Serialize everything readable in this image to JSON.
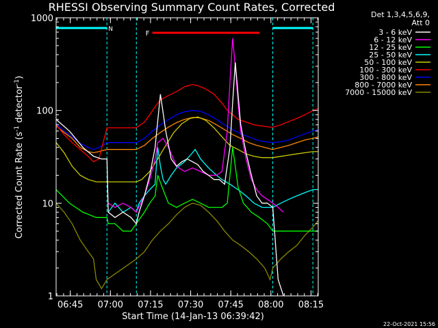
{
  "chart_data": {
    "type": "line",
    "title": "RHESSI Observing Summary Count Rates, Corrected",
    "xlabel": "Start Time (14-Jan-13 06:39:42)",
    "ylabel_main": "Corrected Count Rate (s",
    "ylabel_sup1": "-1",
    "ylabel_mid": " detector",
    "ylabel_sup2": "-1",
    "ylabel_end": ")",
    "y_scale": "log",
    "ylim": [
      1,
      1000
    ],
    "xlim_minutes": [
      0,
      98
    ],
    "x_ticks": [
      {
        "label": "06:45",
        "min": 5.3
      },
      {
        "label": "07:00",
        "min": 20.3
      },
      {
        "label": "07:15",
        "min": 35.3
      },
      {
        "label": "07:30",
        "min": 50.3
      },
      {
        "label": "07:45",
        "min": 65.3
      },
      {
        "label": "08:00",
        "min": 80.3
      },
      {
        "label": "08:15",
        "min": 95.3
      }
    ],
    "y_tick_labels": [
      {
        "label": "1",
        "value": 1
      },
      {
        "label": "10",
        "value": 10
      },
      {
        "label": "100",
        "value": 100
      },
      {
        "label": "1000",
        "value": 1000
      }
    ],
    "legend_header": [
      "Det 1,3,4,5,6,9,",
      "Att 0"
    ],
    "legend_placement": "right",
    "night_label": "N",
    "flare_label": "F",
    "night_intervals": [
      [
        0,
        19
      ],
      [
        81,
        96
      ]
    ],
    "flare_interval": [
      36,
      76
    ],
    "saa_boundaries": [
      0,
      19,
      30,
      81,
      96
    ],
    "footer_date": "22-Oct-2021 15:56",
    "series": [
      {
        "name": "3 - 6 keV",
        "color": "#ffffff",
        "x": [
          0,
          5,
          10,
          14,
          17,
          19,
          19.5,
          22,
          25,
          28,
          30,
          31,
          33,
          35,
          37,
          39,
          41,
          43,
          45,
          47,
          49,
          51,
          53,
          55,
          57,
          59,
          61,
          63,
          65,
          66,
          67,
          68,
          69,
          71,
          73,
          75,
          77,
          79,
          81,
          83,
          85
        ],
        "y": [
          80,
          60,
          40,
          32,
          30,
          30,
          8,
          7,
          8,
          7,
          6,
          8,
          12,
          20,
          40,
          150,
          60,
          30,
          25,
          28,
          30,
          28,
          26,
          22,
          20,
          18,
          18,
          16,
          40,
          120,
          330,
          150,
          70,
          35,
          20,
          12,
          10,
          10,
          9,
          1.5,
          1
        ]
      },
      {
        "name": "6 - 12 keV",
        "color": "#ff00ff",
        "x": [
          19.5,
          22,
          25,
          28,
          30,
          33,
          35,
          37,
          38,
          40,
          42,
          45,
          48,
          51,
          54,
          57,
          60,
          62,
          64,
          65,
          66,
          67,
          68,
          69,
          71,
          73,
          75,
          77,
          79,
          81,
          83,
          85
        ],
        "y": [
          10,
          9,
          10,
          9,
          8,
          12,
          18,
          30,
          45,
          50,
          40,
          25,
          22,
          24,
          22,
          20,
          20,
          22,
          60,
          200,
          600,
          300,
          120,
          60,
          30,
          18,
          14,
          12,
          11,
          10,
          9,
          8
        ]
      },
      {
        "name": "12 - 25 keV",
        "color": "#00ff00",
        "x": [
          0,
          5,
          10,
          15,
          19,
          19.5,
          22,
          25,
          28,
          30,
          33,
          35,
          37,
          38,
          40,
          42,
          45,
          48,
          51,
          54,
          57,
          60,
          62,
          64,
          65,
          66,
          67,
          68,
          70,
          73,
          76,
          79,
          81,
          84,
          87,
          90,
          93,
          96,
          98
        ],
        "y": [
          14,
          10,
          8,
          7,
          7,
          6,
          6,
          5,
          5,
          6,
          8,
          10,
          12,
          20,
          14,
          10,
          9,
          10,
          11,
          10,
          9,
          9,
          9,
          10,
          20,
          40,
          25,
          15,
          10,
          8,
          7,
          6,
          5,
          5,
          5,
          5,
          5,
          5,
          5
        ]
      },
      {
        "name": "25 - 50 keV",
        "color": "#00ffff",
        "x": [
          19.5,
          22,
          25,
          28,
          30,
          31,
          33,
          35,
          37,
          38,
          39,
          40,
          41,
          43,
          45,
          48,
          51,
          52,
          54,
          57,
          60,
          62,
          65,
          68,
          71,
          74,
          77,
          80,
          81,
          84,
          87,
          90,
          93,
          96,
          98
        ],
        "y": [
          8,
          10,
          8,
          9,
          8,
          10,
          12,
          14,
          16,
          40,
          25,
          18,
          16,
          20,
          24,
          28,
          35,
          38,
          30,
          24,
          20,
          18,
          16,
          14,
          12,
          10,
          9,
          9,
          9,
          10,
          11,
          12,
          13,
          14,
          14
        ]
      },
      {
        "name": "50 - 100 keV",
        "color": "#cccc00",
        "x": [
          0,
          3,
          6,
          9,
          12,
          15,
          18,
          19,
          30,
          32,
          35,
          38,
          41,
          44,
          47,
          50,
          53,
          56,
          59,
          62,
          65,
          68,
          71,
          74,
          77,
          80,
          81,
          84,
          87,
          90,
          93,
          96,
          98
        ],
        "y": [
          45,
          35,
          25,
          20,
          18,
          17,
          17,
          17,
          17,
          18,
          22,
          30,
          42,
          58,
          72,
          82,
          85,
          78,
          65,
          52,
          42,
          38,
          34,
          32,
          31,
          31,
          31,
          32,
          33,
          34,
          35,
          36,
          36
        ]
      },
      {
        "name": "100 - 300 keV",
        "color": "#ff0000",
        "x": [
          0,
          3,
          6,
          9,
          12,
          14,
          16,
          19,
          30,
          33,
          35,
          37,
          39,
          42,
          45,
          48,
          51,
          53,
          56,
          59,
          62,
          64,
          66,
          68,
          71,
          74,
          77,
          80,
          81,
          84,
          87,
          90,
          93,
          96,
          98
        ],
        "y": [
          70,
          55,
          45,
          38,
          32,
          28,
          30,
          65,
          65,
          75,
          90,
          110,
          130,
          145,
          160,
          180,
          190,
          185,
          170,
          150,
          120,
          100,
          90,
          80,
          75,
          70,
          68,
          66,
          66,
          70,
          76,
          82,
          90,
          100,
          105
        ]
      },
      {
        "name": "300 - 800 keV",
        "color": "#0000ff",
        "x": [
          0,
          3,
          6,
          9,
          12,
          14,
          16,
          19,
          30,
          33,
          36,
          39,
          42,
          45,
          48,
          51,
          54,
          57,
          60,
          63,
          66,
          69,
          72,
          75,
          78,
          81,
          84,
          87,
          90,
          93,
          96,
          98
        ],
        "y": [
          72,
          60,
          52,
          44,
          40,
          38,
          40,
          45,
          45,
          50,
          60,
          70,
          80,
          90,
          97,
          100,
          98,
          90,
          80,
          70,
          62,
          56,
          52,
          48,
          46,
          45,
          46,
          48,
          52,
          56,
          60,
          62
        ]
      },
      {
        "name": "800 - 7000 keV",
        "color": "#ff8800",
        "x": [
          0,
          3,
          6,
          9,
          12,
          14,
          16,
          19,
          30,
          33,
          36,
          39,
          42,
          45,
          48,
          51,
          54,
          57,
          60,
          63,
          66,
          69,
          72,
          75,
          78,
          81,
          84,
          87,
          90,
          93,
          96,
          98
        ],
        "y": [
          68,
          58,
          50,
          40,
          36,
          35,
          36,
          38,
          38,
          42,
          50,
          58,
          66,
          74,
          80,
          84,
          83,
          78,
          70,
          62,
          55,
          50,
          45,
          42,
          40,
          38,
          40,
          42,
          45,
          48,
          50,
          52
        ]
      },
      {
        "name": "7000 - 15000 keV",
        "color": "#888800",
        "x": [
          0,
          3,
          6,
          9,
          12,
          14,
          15,
          17,
          19,
          30,
          33,
          36,
          39,
          42,
          45,
          48,
          51,
          54,
          57,
          60,
          63,
          66,
          69,
          72,
          75,
          78,
          80,
          81,
          84,
          87,
          90,
          93,
          96,
          98
        ],
        "y": [
          10,
          8,
          6,
          4,
          3,
          2.5,
          1.5,
          1.2,
          1.5,
          2.5,
          3,
          4,
          5,
          6,
          7.5,
          9,
          10,
          9.5,
          8,
          6.5,
          5,
          4,
          3.5,
          3,
          2.5,
          2,
          1.5,
          2,
          2.5,
          3,
          3.5,
          4.5,
          5.5,
          6.5
        ]
      }
    ]
  }
}
